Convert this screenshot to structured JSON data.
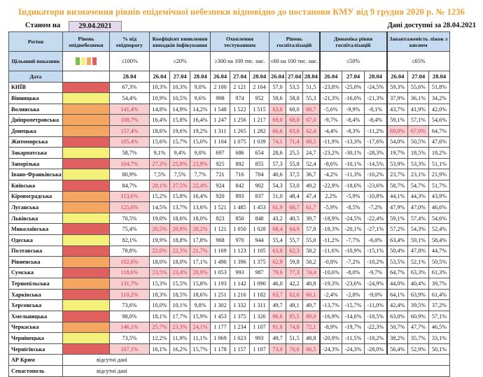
{
  "title": "Індикатори визначення рівнів епідемічної небезпеки відповідно до постанови КМУ від 9 грудня 2020 р. № 1236",
  "as_of_label": "Станом на",
  "as_of_date": "29.04.2021",
  "data_available": "Дані доступні за  28.04.2021",
  "headers": {
    "region": "Регіон",
    "level": "Рівень епіднебезпеки",
    "pct_threshold": "% від епідпорогу",
    "detection": "Коефіцієнт виявлення випадків інфікування",
    "testing": "Охоплення тестуванням",
    "hosp_level": "Рівень госпіталізацій",
    "hosp_dynamics": "Динаміка рівня госпіталізацій",
    "oxygen_beds": "Завантаженість ліжок з киснем",
    "target_label": "Цільовий показник",
    "date_label": "Дата"
  },
  "targets": {
    "pct_threshold": "≤100%",
    "detection": "≤20%",
    "testing": "≥300 на 100 тис. нас.",
    "hosp_level": "≤60 на 100 тис. нас.",
    "hosp_dynamics": "≤50%",
    "oxygen_beds": "≤65%"
  },
  "level_legend_colors": [
    "#7dbf4a",
    "#f4f07a",
    "#f4a660",
    "#e06060"
  ],
  "dates": {
    "pct_threshold": [
      "28.04"
    ],
    "triple": [
      "26.04",
      "27.04",
      "28.04"
    ]
  },
  "level_colors": {
    "red": "#e06060",
    "orange": "#f4a660",
    "yellow": "#f4f07a"
  },
  "rows": [
    {
      "region": "КИЇВ",
      "level": "red",
      "pct": "67,3%",
      "pct_hl": false,
      "det": [
        "10,3%",
        "10,3%",
        "9,0%"
      ],
      "det_hl": false,
      "test": [
        "2 100",
        "2 121",
        "2 164"
      ],
      "hosp": [
        "57,0",
        "53,5",
        "51,5"
      ],
      "hosp_hl": [
        false,
        false,
        false
      ],
      "dyn": [
        "-23,8%",
        "-25,0%",
        "-24,5%"
      ],
      "oxy": [
        "59,3%",
        "55,6%",
        "51,8%"
      ],
      "oxy_hl": [
        false,
        false,
        false
      ]
    },
    {
      "region": "Вінницька",
      "level": "yellow",
      "pct": "54,4%",
      "pct_hl": false,
      "det": [
        "10,9%",
        "10,5%",
        "9,6%"
      ],
      "det_hl": false,
      "test": [
        "998",
        "974",
        "952"
      ],
      "hosp": [
        "59,6",
        "58,8",
        "55,3"
      ],
      "hosp_hl": [
        false,
        false,
        false
      ],
      "dyn": [
        "-21,3%",
        "-16,0%",
        "-21,3%"
      ],
      "oxy": [
        "37,9%",
        "36,1%",
        "34,2%"
      ],
      "oxy_hl": [
        false,
        false,
        false
      ]
    },
    {
      "region": "Волинська",
      "level": "orange",
      "pct": "141,4%",
      "pct_hl": true,
      "det": [
        "14,8%",
        "14,9%",
        "14,2%"
      ],
      "det_hl": false,
      "test": [
        "1 548",
        "1 522",
        "1 515"
      ],
      "hosp": [
        "63,6",
        "60,0",
        "60,7"
      ],
      "hosp_hl": [
        true,
        false,
        true
      ],
      "dyn": [
        "-5,6%",
        "-9,9%",
        "-8,1%"
      ],
      "oxy": [
        "43,7%",
        "41,9%",
        "42,0%"
      ],
      "oxy_hl": [
        false,
        false,
        false
      ]
    },
    {
      "region": "Дніпропетровська",
      "level": "orange",
      "pct": "108,7%",
      "pct_hl": true,
      "det": [
        "16,4%",
        "15,8%",
        "16,4%"
      ],
      "det_hl": false,
      "test": [
        "1 247",
        "1 256",
        "1 217"
      ],
      "hosp": [
        "69,0",
        "68,0",
        "67,0"
      ],
      "hosp_hl": [
        true,
        true,
        true
      ],
      "dyn": [
        "-9,7%",
        "-8,4%",
        "-8,4%"
      ],
      "oxy": [
        "59,1%",
        "57,1%",
        "54,6%"
      ],
      "oxy_hl": [
        false,
        false,
        false
      ]
    },
    {
      "region": "Донецька",
      "level": "orange",
      "pct": "157,4%",
      "pct_hl": true,
      "det": [
        "18,6%",
        "19,6%",
        "19,2%"
      ],
      "det_hl": false,
      "test": [
        "1 311",
        "1 265",
        "1 282"
      ],
      "hosp": [
        "66,6",
        "63,8",
        "62,4"
      ],
      "hosp_hl": [
        true,
        true,
        true
      ],
      "dyn": [
        "-4,4%",
        "-8,3%",
        "-11,2%"
      ],
      "oxy": [
        "69,0%",
        "67,0%",
        "64,7%"
      ],
      "oxy_hl": [
        true,
        true,
        false
      ]
    },
    {
      "region": "Житомирська",
      "level": "red",
      "pct": "105,4%",
      "pct_hl": true,
      "det": [
        "15,6%",
        "15,7%",
        "15,0%"
      ],
      "det_hl": false,
      "test": [
        "1 104",
        "1 075",
        "1 039"
      ],
      "hosp": [
        "74,1",
        "71,4",
        "68,5"
      ],
      "hosp_hl": [
        true,
        true,
        true
      ],
      "dyn": [
        "-11,9%",
        "-13,3%",
        "-17,6%"
      ],
      "oxy": [
        "54,0%",
        "50,5%",
        "47,6%"
      ],
      "oxy_hl": [
        false,
        false,
        false
      ]
    },
    {
      "region": "Закарпатська",
      "level": "yellow",
      "pct": "58,7%",
      "pct_hl": false,
      "det": [
        "9,1%",
        "9,4%",
        "9,0%"
      ],
      "det_hl": false,
      "test": [
        "697",
        "686",
        "654"
      ],
      "hosp": [
        "28,6",
        "25,5",
        "24,7"
      ],
      "hosp_hl": [
        false,
        false,
        false
      ],
      "dyn": [
        "-23,2%",
        "-30,1%",
        "-28,3%"
      ],
      "oxy": [
        "19,7%",
        "18,5%",
        "18,2%"
      ],
      "oxy_hl": [
        false,
        false,
        false
      ]
    },
    {
      "region": "Запорізька",
      "level": "red",
      "pct": "104,7%",
      "pct_hl": true,
      "det": [
        "27,3%",
        "25,9%",
        "23,9%"
      ],
      "det_hl": true,
      "test": [
        "925",
        "892",
        "855"
      ],
      "hosp": [
        "57,3",
        "55,8",
        "52,4"
      ],
      "hosp_hl": [
        false,
        false,
        false
      ],
      "dyn": [
        "-8,6%",
        "-10,1%",
        "-14,5%"
      ],
      "oxy": [
        "53,9%",
        "53,3%",
        "51,1%"
      ],
      "oxy_hl": [
        false,
        false,
        false
      ]
    },
    {
      "region": "Івано-Франківська",
      "level": "yellow",
      "pct": "80,9%",
      "pct_hl": false,
      "det": [
        "7,5%",
        "7,5%",
        "7,7%"
      ],
      "det_hl": false,
      "test": [
        "721",
        "716",
        "704"
      ],
      "hosp": [
        "40,6",
        "37,5",
        "36,7"
      ],
      "hosp_hl": [
        false,
        false,
        false
      ],
      "dyn": [
        "-4,2%",
        "-11,3%",
        "-10,2%"
      ],
      "oxy": [
        "23,7%",
        "23,1%",
        "21,9%"
      ],
      "oxy_hl": [
        false,
        false,
        false
      ]
    },
    {
      "region": "Київська",
      "level": "red",
      "pct": "84,7%",
      "pct_hl": false,
      "det": [
        "28,1%",
        "27,5%",
        "22,4%"
      ],
      "det_hl": true,
      "test": [
        "924",
        "842",
        "902"
      ],
      "hosp": [
        "54,3",
        "53,0",
        "49,2"
      ],
      "hosp_hl": [
        false,
        false,
        false
      ],
      "dyn": [
        "-22,9%",
        "-18,6%",
        "-23,6%"
      ],
      "oxy": [
        "58,7%",
        "54,7%",
        "51,7%"
      ],
      "oxy_hl": [
        false,
        false,
        false
      ]
    },
    {
      "region": "Кіровоградська",
      "level": "orange",
      "pct": "113,6%",
      "pct_hl": true,
      "det": [
        "15,2%",
        "15,8%",
        "16,4%"
      ],
      "det_hl": false,
      "test": [
        "920",
        "893",
        "837"
      ],
      "hosp": [
        "51,0",
        "48,4",
        "47,4"
      ],
      "hosp_hl": [
        false,
        false,
        false
      ],
      "dyn": [
        "2,2%",
        "-5,9%",
        "-10,8%"
      ],
      "oxy": [
        "44,1%",
        "44,3%",
        "43,9%"
      ],
      "oxy_hl": [
        false,
        false,
        false
      ]
    },
    {
      "region": "Луганська",
      "level": "orange",
      "pct": "125,6%",
      "pct_hl": true,
      "det": [
        "14,5%",
        "13,7%",
        "13,6%"
      ],
      "det_hl": false,
      "test": [
        "1 521",
        "1 485",
        "1 453"
      ],
      "hosp": [
        "61,9",
        "60,7",
        "61,7"
      ],
      "hosp_hl": [
        true,
        true,
        true
      ],
      "dyn": [
        "-5,9%",
        "-8,5%",
        "-7,2%"
      ],
      "oxy": [
        "47,9%",
        "47,0%",
        "46,6%"
      ],
      "oxy_hl": [
        false,
        false,
        false
      ]
    },
    {
      "region": "Львівська",
      "level": "yellow",
      "pct": "70,5%",
      "pct_hl": false,
      "det": [
        "19,0%",
        "18,6%",
        "18,0%"
      ],
      "det_hl": false,
      "test": [
        "823",
        "850",
        "848"
      ],
      "hosp": [
        "43,2",
        "40,5",
        "39,7"
      ],
      "hosp_hl": [
        false,
        false,
        false
      ],
      "dyn": [
        "-18,9%",
        "-24,5%",
        "-22,4%"
      ],
      "oxy": [
        "59,1%",
        "57,4%",
        "54,6%"
      ],
      "oxy_hl": [
        false,
        false,
        false
      ]
    },
    {
      "region": "Миколаївська",
      "level": "red",
      "pct": "75,4%",
      "pct_hl": false,
      "det": [
        "20,5%",
        "20,9%",
        "20,2%"
      ],
      "det_hl": true,
      "test": [
        "1 121",
        "1 050",
        "1 028"
      ],
      "hosp": [
        "68,4",
        "64,9",
        "57,8"
      ],
      "hosp_hl": [
        true,
        true,
        false
      ],
      "dyn": [
        "-18,3%",
        "-20,1%",
        "-27,1%"
      ],
      "oxy": [
        "57,2%",
        "54,3%",
        "52,4%"
      ],
      "oxy_hl": [
        false,
        false,
        false
      ]
    },
    {
      "region": "Одеська",
      "level": "yellow",
      "pct": "82,1%",
      "pct_hl": false,
      "det": [
        "19,9%",
        "18,8%",
        "17,8%"
      ],
      "det_hl": false,
      "test": [
        "968",
        "970",
        "944"
      ],
      "hosp": [
        "55,4",
        "55,7",
        "55,0"
      ],
      "hosp_hl": [
        false,
        false,
        false
      ],
      "dyn": [
        "-11,2%",
        "-7,7%",
        "-6,0%"
      ],
      "oxy": [
        "63,4%",
        "59,1%",
        "58,4%"
      ],
      "oxy_hl": [
        false,
        false,
        false
      ]
    },
    {
      "region": "Полтавська",
      "level": "red",
      "pct": "78,8%",
      "pct_hl": false,
      "det": [
        "22,0%",
        "22,3%",
        "21,7%"
      ],
      "det_hl": true,
      "test": [
        "1 169",
        "1 123",
        "1 105"
      ],
      "hosp": [
        "63,8",
        "62,3",
        "58,2"
      ],
      "hosp_hl": [
        true,
        true,
        false
      ],
      "dyn": [
        "-11,6%",
        "-10,9%",
        "-15,1%"
      ],
      "oxy": [
        "50,4%",
        "47,8%",
        "44,7%"
      ],
      "oxy_hl": [
        false,
        false,
        false
      ]
    },
    {
      "region": "Рівненська",
      "level": "orange",
      "pct": "102,6%",
      "pct_hl": true,
      "det": [
        "18,0%",
        "18,0%",
        "17,1%"
      ],
      "det_hl": false,
      "test": [
        "1 490",
        "1 396",
        "1 375"
      ],
      "hosp": [
        "62,9",
        "59,8",
        "58,2"
      ],
      "hosp_hl": [
        true,
        false,
        false
      ],
      "dyn": [
        "-0,8%",
        "-7,2%",
        "-10,2%"
      ],
      "oxy": [
        "53,5%",
        "52,1%",
        "50,5%"
      ],
      "oxy_hl": [
        false,
        false,
        false
      ]
    },
    {
      "region": "Сумська",
      "level": "red",
      "pct": "118,6%",
      "pct_hl": true,
      "det": [
        "23,5%",
        "23,4%",
        "20,9%"
      ],
      "det_hl": true,
      "test": [
        "1 053",
        "993",
        "987"
      ],
      "hosp": [
        "79,6",
        "77,3",
        "74,4"
      ],
      "hosp_hl": [
        true,
        true,
        true
      ],
      "dyn": [
        "-10,6%",
        "-8,0%",
        "-9,7%"
      ],
      "oxy": [
        "64,7%",
        "63,3%",
        "61,3%"
      ],
      "oxy_hl": [
        false,
        false,
        false
      ]
    },
    {
      "region": "Тернопільська",
      "level": "orange",
      "pct": "131,7%",
      "pct_hl": true,
      "det": [
        "15,3%",
        "15,5%",
        "15,8%"
      ],
      "det_hl": false,
      "test": [
        "1 193",
        "1 142",
        "1 090"
      ],
      "hosp": [
        "46,0",
        "42,2",
        "40,8"
      ],
      "hosp_hl": [
        false,
        false,
        false
      ],
      "dyn": [
        "-19,3%",
        "-23,6%",
        "-24,9%"
      ],
      "oxy": [
        "44,0%",
        "40,4%",
        "39,7%"
      ],
      "oxy_hl": [
        false,
        false,
        false
      ]
    },
    {
      "region": "Харківська",
      "level": "red",
      "pct": "110,2%",
      "pct_hl": true,
      "det": [
        "18,3%",
        "18,5%",
        "18,6%"
      ],
      "det_hl": false,
      "test": [
        "1 251",
        "1 216",
        "1 182"
      ],
      "hosp": [
        "63,7",
        "62,6",
        "60,1"
      ],
      "hosp_hl": [
        true,
        true,
        true
      ],
      "dyn": [
        "-2,4%",
        "-2,8%",
        "-9,0%"
      ],
      "oxy": [
        "64,1%",
        "63,9%",
        "61,4%"
      ],
      "oxy_hl": [
        false,
        false,
        false
      ]
    },
    {
      "region": "Херсонська",
      "level": "yellow",
      "pct": "73,6%",
      "pct_hl": false,
      "det": [
        "10,0%",
        "10,1%",
        "9,8%"
      ],
      "det_hl": false,
      "test": [
        "1 302",
        "1 332",
        "1 311"
      ],
      "hosp": [
        "49,7",
        "49,1",
        "49,7"
      ],
      "hosp_hl": [
        false,
        false,
        false
      ],
      "dyn": [
        "-13,7%",
        "-15,7%",
        "-11,0%"
      ],
      "oxy": [
        "42,4%",
        "39,5%",
        "37,2%"
      ],
      "oxy_hl": [
        false,
        false,
        false
      ]
    },
    {
      "region": "Хмельницька",
      "level": "red",
      "pct": "98,0%",
      "pct_hl": false,
      "det": [
        "18,1%",
        "17,7%",
        "15,9%"
      ],
      "det_hl": false,
      "test": [
        "1 453",
        "1 375",
        "1 326"
      ],
      "hosp": [
        "96,6",
        "95,5",
        "89,9"
      ],
      "hosp_hl": [
        true,
        true,
        true
      ],
      "dyn": [
        "-16,9%",
        "-14,6%",
        "-18,5%"
      ],
      "oxy": [
        "63,0%",
        "60,9%",
        "57,1%"
      ],
      "oxy_hl": [
        false,
        false,
        false
      ]
    },
    {
      "region": "Черкаська",
      "level": "orange",
      "pct": "146,1%",
      "pct_hl": true,
      "det": [
        "25,7%",
        "23,3%",
        "24,1%"
      ],
      "det_hl": true,
      "test": [
        "1 177",
        "1 234",
        "1 107"
      ],
      "hosp": [
        "81,8",
        "74,8",
        "72,1"
      ],
      "hosp_hl": [
        true,
        true,
        true
      ],
      "dyn": [
        "-8,9%",
        "-19,7%",
        "-22,3%"
      ],
      "oxy": [
        "50,7%",
        "47,7%",
        "46,5%"
      ],
      "oxy_hl": [
        false,
        false,
        false
      ]
    },
    {
      "region": "Чернівецька",
      "level": "yellow",
      "pct": "73,5%",
      "pct_hl": false,
      "det": [
        "12,2%",
        "11,9%",
        "11,1%"
      ],
      "det_hl": false,
      "test": [
        "1 069",
        "1 023",
        "993"
      ],
      "hosp": [
        "49,7",
        "51,5",
        "48,8"
      ],
      "hosp_hl": [
        false,
        false,
        false
      ],
      "dyn": [
        "-20,9%",
        "-11,5%",
        "-18,2%"
      ],
      "oxy": [
        "38,2%",
        "35,7%",
        "33,1%"
      ],
      "oxy_hl": [
        false,
        false,
        false
      ]
    },
    {
      "region": "Чернігівська",
      "level": "red",
      "pct": "107,1%",
      "pct_hl": true,
      "det": [
        "16,1%",
        "16,2%",
        "15,7%"
      ],
      "det_hl": false,
      "test": [
        "1 178",
        "1 157",
        "1 107"
      ],
      "hosp": [
        "73,0",
        "70,6",
        "66,5"
      ],
      "hosp_hl": [
        true,
        true,
        true
      ],
      "dyn": [
        "-24,3%",
        "-24,3%",
        "-28,0%"
      ],
      "oxy": [
        "56,4%",
        "52,9%",
        "50,1%"
      ],
      "oxy_hl": [
        false,
        false,
        false
      ]
    }
  ],
  "missing_rows": [
    {
      "region": "АР Крим",
      "note": "відсутні дані"
    },
    {
      "region": "Севастополь",
      "note": "відсутні дані"
    }
  ]
}
